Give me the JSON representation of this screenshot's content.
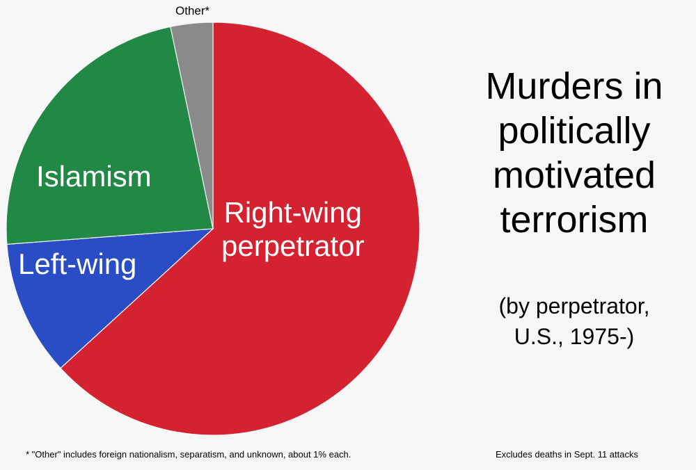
{
  "chart_data": {
    "type": "pie",
    "title": "Murders in politically motivated terrorism",
    "subtitle": "(by perpetrator, U.S., 1975-)",
    "categories": [
      "Right-wing perpetrator",
      "Left-wing",
      "Islamism",
      "Other*"
    ],
    "values": [
      63.2,
      10.6,
      22.9,
      3.3
    ],
    "colors": [
      "#d42230",
      "#2a4dc6",
      "#228845",
      "#8a8a8a"
    ],
    "start_angle": "12 o'clock, clockwise",
    "footnote": "* \"Other\" includes foreign nationalism, separatism, and unknown, about 1% each.",
    "note": "Excludes deaths in Sept. 11 attacks"
  },
  "labels": {
    "right": [
      "Right-wing",
      "perpetrator"
    ],
    "left": "Left-wing",
    "islam": "Islamism",
    "other": "Other*"
  },
  "title_lines": [
    "Murders in",
    "politically",
    "motivated",
    "terrorism"
  ],
  "subtitle_lines": [
    "(by perpetrator,",
    "U.S., 1975-)"
  ],
  "footnote": "* \"Other\" includes foreign nationalism, separatism, and unknown, about 1% each.",
  "note": "Excludes deaths in Sept. 11 attacks"
}
